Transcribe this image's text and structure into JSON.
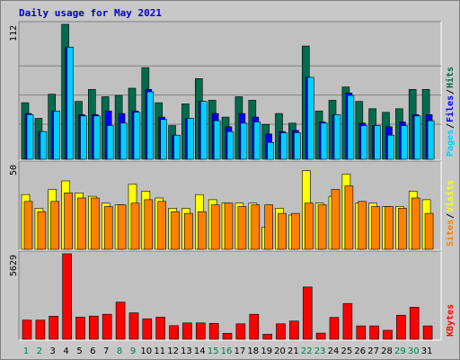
{
  "chart_data": {
    "type": "bar",
    "title": "Daily usage for May 2021",
    "categories": [
      "1",
      "2",
      "3",
      "4",
      "5",
      "6",
      "7",
      "8",
      "9",
      "10",
      "11",
      "12",
      "13",
      "14",
      "15",
      "16",
      "17",
      "18",
      "19",
      "20",
      "21",
      "22",
      "23",
      "24",
      "25",
      "26",
      "27",
      "28",
      "29",
      "30",
      "31"
    ],
    "weekend_days": [
      "1",
      "2",
      "8",
      "9",
      "15",
      "16",
      "22",
      "23",
      "29",
      "30"
    ],
    "colors": {
      "hits": "#006b4d",
      "files": "#0000ff",
      "pages": "#00d0ff",
      "visits": "#ffff00",
      "sites": "#ff8000",
      "kbytes": "#ff0000",
      "weekday_label": "#000000",
      "weekend_label": "#007e48",
      "title": "#0000cc",
      "frame_bg": "#c8c8c8",
      "plot_bg": "#c0c0c0",
      "gridline": "#808080"
    },
    "panels": [
      {
        "id": "hits-files-pages",
        "ymax_label": "112",
        "ylim": [
          0,
          112
        ],
        "series": [
          {
            "name": "Hits",
            "key": "hits",
            "values": [
              47,
              34,
              54,
              112,
              48,
              58,
              52,
              53,
              59,
              76,
              47,
              28,
              46,
              67,
              49,
              35,
              52,
              49,
              29,
              38,
              30,
              94,
              40,
              49,
              60,
              48,
              42,
              39,
              42,
              58,
              58
            ]
          },
          {
            "name": "Files",
            "key": "files",
            "values": [
              38,
              23,
              40,
              93,
              37,
              37,
              40,
              38,
              40,
              58,
              35,
              20,
              34,
              48,
              38,
              27,
              38,
              35,
              21,
              23,
              24,
              68,
              31,
              37,
              55,
              30,
              28,
              27,
              31,
              37,
              37
            ]
          },
          {
            "name": "Pages",
            "key": "pages",
            "values": [
              37,
              23,
              40,
              93,
              36,
              36,
              28,
              30,
              39,
              56,
              33,
              20,
              34,
              48,
              32,
              23,
              30,
              31,
              14,
              22,
              22,
              68,
              30,
              37,
              53,
              28,
              28,
              20,
              28,
              36,
              32
            ]
          }
        ],
        "right_labels": [
          "Pages",
          "/",
          "Files",
          "/",
          "Hits"
        ]
      },
      {
        "id": "visits-sites",
        "ymax_label": "50",
        "ylim": [
          0,
          50
        ],
        "series": [
          {
            "name": "Visits",
            "key": "visits",
            "values": [
              32,
              24,
              35,
              40,
              33,
              31,
              27,
              26,
              38,
              34,
              30,
              24,
              24,
              32,
              29,
              27,
              27,
              27,
              13,
              24,
              20,
              46,
              27,
              31,
              44,
              27,
              27,
              25,
              25,
              34,
              29
            ]
          },
          {
            "name": "Sites",
            "key": "sites",
            "values": [
              28,
              22,
              28,
              33,
              30,
              30,
              25,
              26,
              27,
              29,
              28,
              22,
              21,
              22,
              26,
              27,
              25,
              26,
              26,
              21,
              21,
              27,
              26,
              35,
              37,
              28,
              25,
              25,
              24,
              30,
              21
            ]
          }
        ],
        "right_labels": [
          "Sites",
          "/",
          "Visits"
        ]
      },
      {
        "id": "kbytes",
        "ymax_label": "5629",
        "ylim": [
          0,
          5629
        ],
        "series": [
          {
            "name": "KBytes",
            "key": "kbytes",
            "values": [
              1260,
              1260,
              1520,
              5629,
              1460,
              1530,
              1650,
              2450,
              1740,
              1350,
              1460,
              900,
              1080,
              1080,
              1050,
              390,
              1020,
              1650,
              330,
              1020,
              1200,
              3440,
              410,
              1440,
              2360,
              880,
              880,
              590,
              1590,
              2110,
              880
            ]
          }
        ],
        "right_labels": [
          "KBytes"
        ]
      }
    ]
  }
}
